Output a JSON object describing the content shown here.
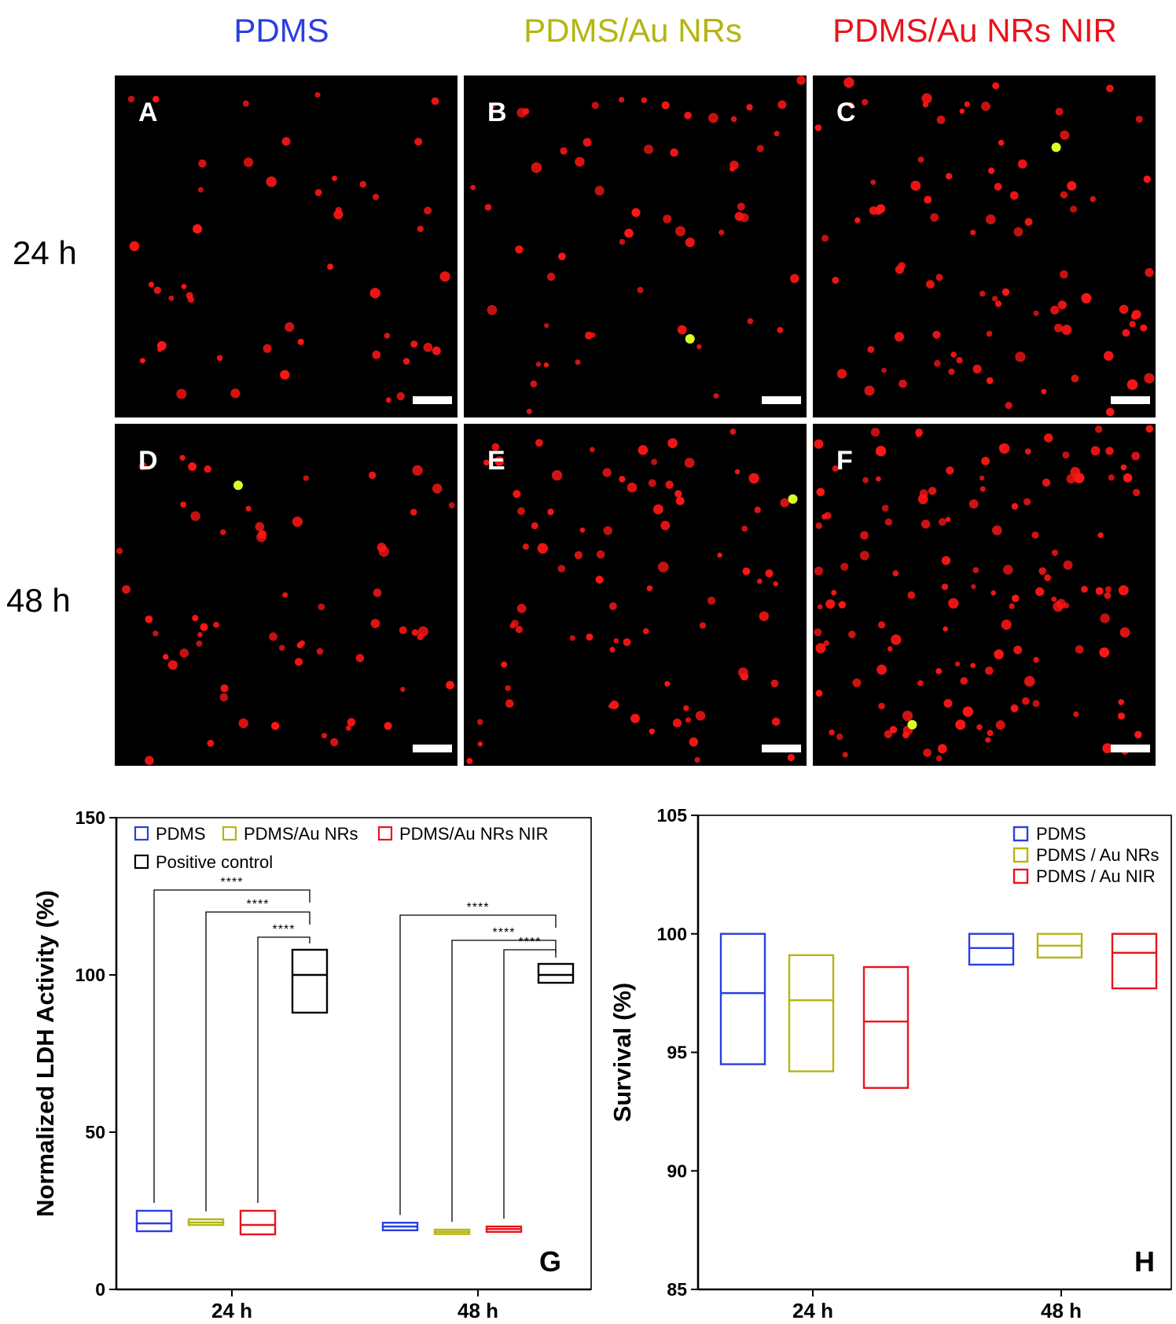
{
  "column_titles": [
    {
      "text": "PDMS",
      "color": "#2a3fe0"
    },
    {
      "text": "PDMS/Au NRs",
      "color": "#b5b510"
    },
    {
      "text": "PDMS/Au NRs NIR",
      "color": "#e8141c"
    }
  ],
  "row_labels": [
    "24 h",
    "48 h"
  ],
  "panel_labels": [
    "A",
    "B",
    "C",
    "D",
    "E",
    "F"
  ],
  "micro_colors": {
    "background": "#000000",
    "dead_cell": "#ff1616",
    "live_cell": "#d8ff2a",
    "scale_bar": "#ffffff"
  },
  "series_colors": [
    "#2a3fe0",
    "#b5b510",
    "#e8141c",
    "#000000"
  ],
  "chart_data": [
    {
      "type": "box",
      "panel": "G",
      "ylabel": "Normalized LDH Activity (%)",
      "ylim": [
        0,
        150
      ],
      "yticks": [
        "0",
        "50",
        "100",
        "150"
      ],
      "categories": [
        "24 h",
        "48 h"
      ],
      "legend": [
        "PDMS",
        "PDMS/Au NRs",
        "PDMS/Au NRs NIR",
        "Positive control"
      ],
      "series": [
        {
          "name": "PDMS",
          "boxes": [
            {
              "low": 18.5,
              "mid": 21,
              "high": 25
            },
            {
              "low": 18.8,
              "mid": 20,
              "high": 21.2
            }
          ]
        },
        {
          "name": "PDMS/Au NRs",
          "boxes": [
            {
              "low": 20.5,
              "mid": 21.3,
              "high": 22.3
            },
            {
              "low": 17.6,
              "mid": 18.3,
              "high": 19
            }
          ]
        },
        {
          "name": "PDMS/Au NRs NIR",
          "boxes": [
            {
              "low": 17.5,
              "mid": 20.5,
              "high": 25
            },
            {
              "low": 18.3,
              "mid": 19.2,
              "high": 20
            }
          ]
        },
        {
          "name": "Positive control",
          "boxes": [
            {
              "low": 88,
              "mid": 100,
              "high": 108
            },
            {
              "low": 97.5,
              "mid": 100,
              "high": 103.5
            }
          ]
        }
      ],
      "significance": [
        {
          "group": 0,
          "from": 0,
          "level": 127,
          "label": "****"
        },
        {
          "group": 0,
          "from": 1,
          "level": 120,
          "label": "****"
        },
        {
          "group": 0,
          "from": 2,
          "level": 112,
          "label": "****"
        },
        {
          "group": 1,
          "from": 0,
          "level": 119,
          "label": "****"
        },
        {
          "group": 1,
          "from": 1,
          "level": 111,
          "label": "****"
        },
        {
          "group": 1,
          "from": 2,
          "level": 108,
          "label": "****"
        }
      ]
    },
    {
      "type": "box",
      "panel": "H",
      "ylabel": "Survival (%)",
      "ylim": [
        85,
        105
      ],
      "yticks": [
        "85",
        "90",
        "95",
        "100",
        "105"
      ],
      "categories": [
        "24 h",
        "48 h"
      ],
      "legend": [
        "PDMS",
        "PDMS / Au NRs",
        "PDMS / Au  NIR"
      ],
      "series": [
        {
          "name": "PDMS",
          "boxes": [
            {
              "low": 94.5,
              "mid": 97.5,
              "high": 100
            },
            {
              "low": 98.7,
              "mid": 99.4,
              "high": 100
            }
          ]
        },
        {
          "name": "PDMS / Au NRs",
          "boxes": [
            {
              "low": 94.2,
              "mid": 97.2,
              "high": 99.1
            },
            {
              "low": 99,
              "mid": 99.5,
              "high": 100
            }
          ]
        },
        {
          "name": "PDMS / Au  NIR",
          "boxes": [
            {
              "low": 93.5,
              "mid": 96.3,
              "high": 98.6
            },
            {
              "low": 97.7,
              "mid": 99.2,
              "high": 100
            }
          ]
        }
      ]
    }
  ]
}
